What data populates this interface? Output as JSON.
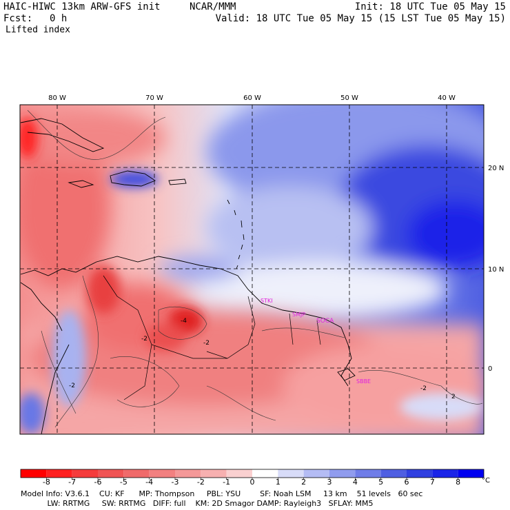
{
  "header": {
    "title": "HAIC-HIWC 13km ARW-GFS init",
    "agency": "NCAR/MMM",
    "init": "Init: 18 UTC Tue 05 May 15",
    "fcst_label": "Fcst:",
    "fcst_value": "0 h",
    "valid": "Valid: 18 UTC Tue 05 May 15 (15 LST Tue 05 May 15)",
    "field": "Lifted index"
  },
  "map": {
    "longitude_labels": [
      "80 W",
      "70 W",
      "60 W",
      "50 W",
      "40 W"
    ],
    "latitude_labels": [
      "20 N",
      "10 N",
      "0"
    ],
    "contour_labels": [
      "-2",
      "-2",
      "-2",
      "-2",
      "2",
      "-4"
    ],
    "station_labels": [
      "STKI",
      "SMJP",
      "SOCA",
      "SBBE"
    ],
    "station_color": "#e020e0"
  },
  "colorbar": {
    "ticks": [
      "-8",
      "-7",
      "-6",
      "-5",
      "-4",
      "-3",
      "-2",
      "-1",
      "0",
      "1",
      "2",
      "3",
      "4",
      "5",
      "6",
      "7",
      "8"
    ],
    "unit": "°C",
    "colors": [
      "#ff0000",
      "#ff2020",
      "#f53c3c",
      "#f05454",
      "#f06a6a",
      "#f28080",
      "#f49898",
      "#f7b0b0",
      "#fad0d0",
      "#ffffff",
      "#d8dcf8",
      "#b4bcf4",
      "#909cee",
      "#6f7de8",
      "#4f5fe2",
      "#3040e0",
      "#1a24e8",
      "#0000f0"
    ]
  },
  "footer": {
    "line1": "Model Info: V3.6.1    CU: KF      MP: Thompson     PBL: YSU        SF: Noah LSM     13 km    51 levels   60 sec",
    "line2": "           LW: RRTMG     SW: RRTMG   DIFF: full    KM: 2D Smagor DAMP: Rayleigh3   SFLAY: MM5"
  }
}
